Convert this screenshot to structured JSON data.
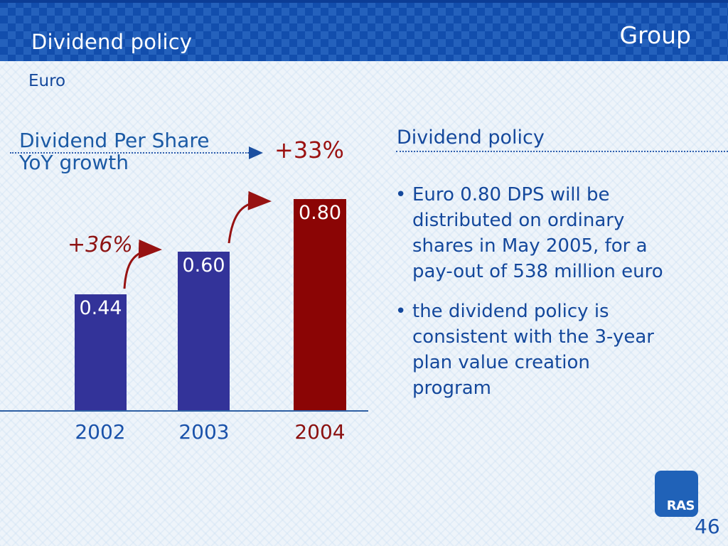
{
  "header": {
    "title": "Dividend policy",
    "brand": "Group"
  },
  "unit_label": "Euro",
  "chart_data": {
    "type": "bar",
    "title": "Dividend Per Share\nYoY growth",
    "unit": "Euro",
    "categories": [
      "2002",
      "2003",
      "2004"
    ],
    "values": [
      0.44,
      0.6,
      0.8
    ],
    "value_labels": [
      "0.44",
      "0.60",
      "0.80"
    ],
    "yoy_growth": [
      "+36%",
      "+33%"
    ],
    "bar_colors": [
      "#333399",
      "#333399",
      "#8b0505"
    ],
    "category_colors": [
      "#1a52aa",
      "#1a52aa",
      "#8b1010"
    ],
    "ylim": [
      0,
      0.85
    ],
    "grid": false,
    "legend": false,
    "annotations": "curved red arrows show YoY growth between consecutive bars"
  },
  "panel": {
    "heading": "Dividend policy",
    "bullets": [
      "Euro 0.80 DPS will be\ndistributed on ordinary\nshares in May 2005, for a\npay-out of 538 million euro",
      "the dividend policy is\nconsistent with the 3-year\nplan value creation\nprogram"
    ]
  },
  "logo": {
    "text": "RAS"
  },
  "page_number": "46",
  "colors": {
    "header_blue": "#1355b7",
    "bar_blue": "#333399",
    "bar_red": "#8b0505",
    "accent_red": "#9b1111",
    "text_blue": "#14489c",
    "axis_blue": "#2e5fa3",
    "background": "#eef4fa"
  }
}
